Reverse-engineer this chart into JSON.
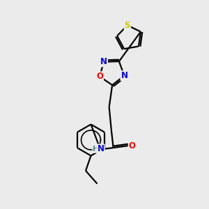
{
  "background_color": "#ebebeb",
  "bond_color": "#000000",
  "atom_colors": {
    "S": "#cccc00",
    "N": "#0000ff",
    "O": "#ff0000",
    "H": "#4a9090",
    "C": "#000000"
  },
  "lw": 1.6
}
